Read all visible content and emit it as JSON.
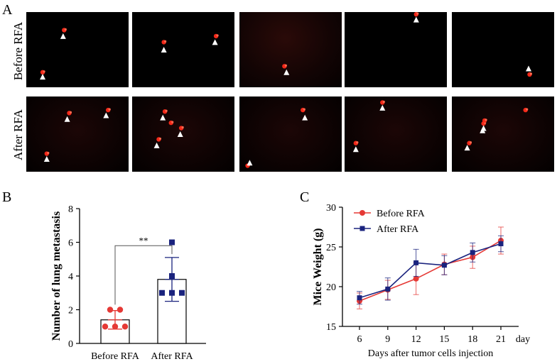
{
  "panels": {
    "A": {
      "label": "A",
      "rows": [
        {
          "label": "Before RFA",
          "images": [
            {
              "name": "before-rfa-image-1",
              "arrows": [
                [
                  0.36,
                  0.32
                ],
                [
                  0.16,
                  0.86
                ]
              ],
              "spots": [
                [
                  0.37,
                  0.24
                ],
                [
                  0.16,
                  0.8
                ]
              ]
            },
            {
              "name": "before-rfa-image-2",
              "arrows": [
                [
                  0.31,
                  0.5
                ],
                [
                  0.81,
                  0.4
                ]
              ],
              "spots": [
                [
                  0.31,
                  0.4
                ],
                [
                  0.82,
                  0.32
                ]
              ]
            },
            {
              "name": "before-rfa-image-3",
              "arrows": [
                [
                  0.46,
                  0.8
                ]
              ],
              "spots": [
                [
                  0.44,
                  0.72
                ]
              ]
            },
            {
              "name": "before-rfa-image-4",
              "arrows": [
                [
                  0.7,
                  0.1
                ]
              ],
              "spots": [
                [
                  0.7,
                  0.03
                ]
              ]
            },
            {
              "name": "before-rfa-image-5",
              "arrows": [
                [
                  0.75,
                  0.75
                ]
              ],
              "spots": [
                [
                  0.76,
                  0.83
                ]
              ]
            }
          ]
        },
        {
          "label": "After RFA",
          "images": [
            {
              "name": "after-rfa-image-1",
              "arrows": [
                [
                  0.4,
                  0.3
                ],
                [
                  0.78,
                  0.25
                ],
                [
                  0.2,
                  0.83
                ]
              ],
              "spots": [
                [
                  0.42,
                  0.22
                ],
                [
                  0.8,
                  0.18
                ],
                [
                  0.2,
                  0.76
                ]
              ]
            },
            {
              "name": "after-rfa-image-2",
              "arrows": [
                [
                  0.3,
                  0.28
                ],
                [
                  0.47,
                  0.5
                ],
                [
                  0.24,
                  0.65
                ]
              ],
              "spots": [
                [
                  0.32,
                  0.2
                ],
                [
                  0.48,
                  0.42
                ],
                [
                  0.26,
                  0.57
                ],
                [
                  0.38,
                  0.35
                ]
              ]
            },
            {
              "name": "after-rfa-image-3",
              "arrows": [
                [
                  0.64,
                  0.28
                ],
                [
                  0.1,
                  0.88
                ]
              ],
              "spots": [
                [
                  0.62,
                  0.18
                ],
                [
                  0.08,
                  0.92
                ]
              ]
            },
            {
              "name": "after-rfa-image-4",
              "arrows": [
                [
                  0.37,
                  0.15
                ],
                [
                  0.11,
                  0.7
                ]
              ],
              "spots": [
                [
                  0.37,
                  0.08
                ],
                [
                  0.11,
                  0.62
                ]
              ]
            },
            {
              "name": "after-rfa-image-5",
              "arrows": [
                [
                  0.15,
                  0.68
                ],
                [
                  0.3,
                  0.45
                ],
                [
                  0.31,
                  0.42
                ]
              ],
              "spots": [
                [
                  0.17,
                  0.62
                ],
                [
                  0.31,
                  0.36
                ],
                [
                  0.32,
                  0.32
                ],
                [
                  0.72,
                  0.18
                ]
              ]
            }
          ]
        }
      ]
    },
    "B": {
      "label": "B"
    },
    "C": {
      "label": "C"
    }
  },
  "chart_data": [
    {
      "id": "B",
      "type": "bar",
      "ylabel": "Number of lung metastasis",
      "xlabel": "",
      "ylim": [
        0,
        8
      ],
      "yticks": [
        "0",
        "2",
        "4",
        "6",
        "8"
      ],
      "categories": [
        "Before RFA",
        "After RFA"
      ],
      "means": [
        1.4,
        3.8
      ],
      "sd": [
        0.55,
        1.3
      ],
      "points": [
        [
          2,
          2,
          1,
          1,
          1
        ],
        [
          6,
          4,
          3,
          3,
          3
        ]
      ],
      "point_colors": [
        "#e53935",
        "#1a237e"
      ],
      "significance": "**"
    },
    {
      "id": "C",
      "type": "line",
      "ylabel": "Mice Weight (g)",
      "xlabel": "Days after tumor cells injection",
      "x_unit_label": "day",
      "x": [
        6,
        9,
        12,
        15,
        18,
        21
      ],
      "xticks": [
        "6",
        "9",
        "12",
        "15",
        "18",
        "21"
      ],
      "ylim": [
        15,
        30
      ],
      "yticks": [
        "15",
        "20",
        "25",
        "30"
      ],
      "series": [
        {
          "name": "Before RFA",
          "color": "#e53935",
          "marker": "circle",
          "values": [
            18.2,
            19.6,
            21.0,
            22.8,
            23.7,
            25.8
          ],
          "errors": [
            1.0,
            1.2,
            2.0,
            1.3,
            1.4,
            1.7
          ]
        },
        {
          "name": "After RFA",
          "color": "#1a237e",
          "marker": "square",
          "values": [
            18.6,
            19.7,
            23.0,
            22.7,
            24.3,
            25.4
          ],
          "errors": [
            0.8,
            1.4,
            1.7,
            1.2,
            1.2,
            1.0
          ]
        }
      ]
    }
  ]
}
